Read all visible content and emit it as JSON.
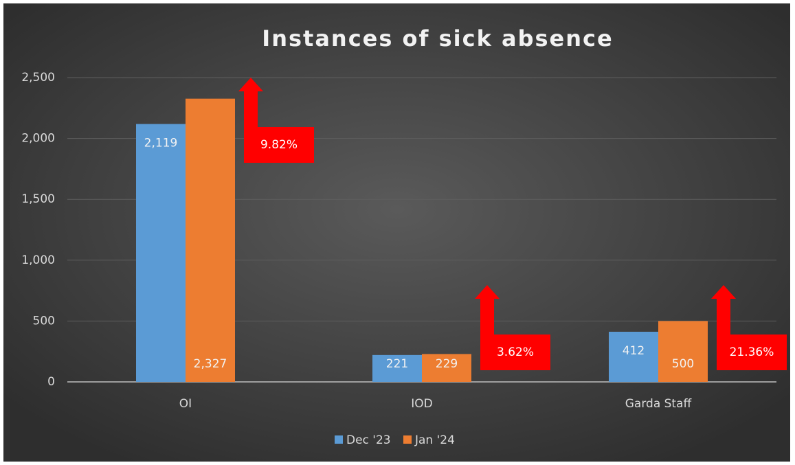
{
  "chart_data": {
    "type": "bar",
    "title": "Instances of sick absence",
    "categories": [
      "OI",
      "IOD",
      "Garda Staff"
    ],
    "series": [
      {
        "name": "Dec '23",
        "color": "#5b9bd5",
        "values": [
          2119,
          221,
          412
        ],
        "value_labels": [
          "2,119",
          "221",
          "412"
        ]
      },
      {
        "name": "Jan '24",
        "color": "#ed7d31",
        "values": [
          2327,
          229,
          500
        ],
        "value_labels": [
          "2,327",
          "229",
          "500"
        ]
      }
    ],
    "ylim": [
      0,
      2500
    ],
    "yticks": [
      0,
      500,
      {
        "value": 1000,
        "label": "1,000"
      },
      {
        "value": 1500,
        "label": "1,500"
      },
      {
        "value": 2000,
        "label": "2,000"
      },
      {
        "value": 2500,
        "label": "2,500"
      }
    ],
    "grid": true,
    "legend": "bottom",
    "annotations": [
      "9.82%",
      "3.62%",
      "21.36%"
    ],
    "annotation_color": "#ff0000"
  }
}
